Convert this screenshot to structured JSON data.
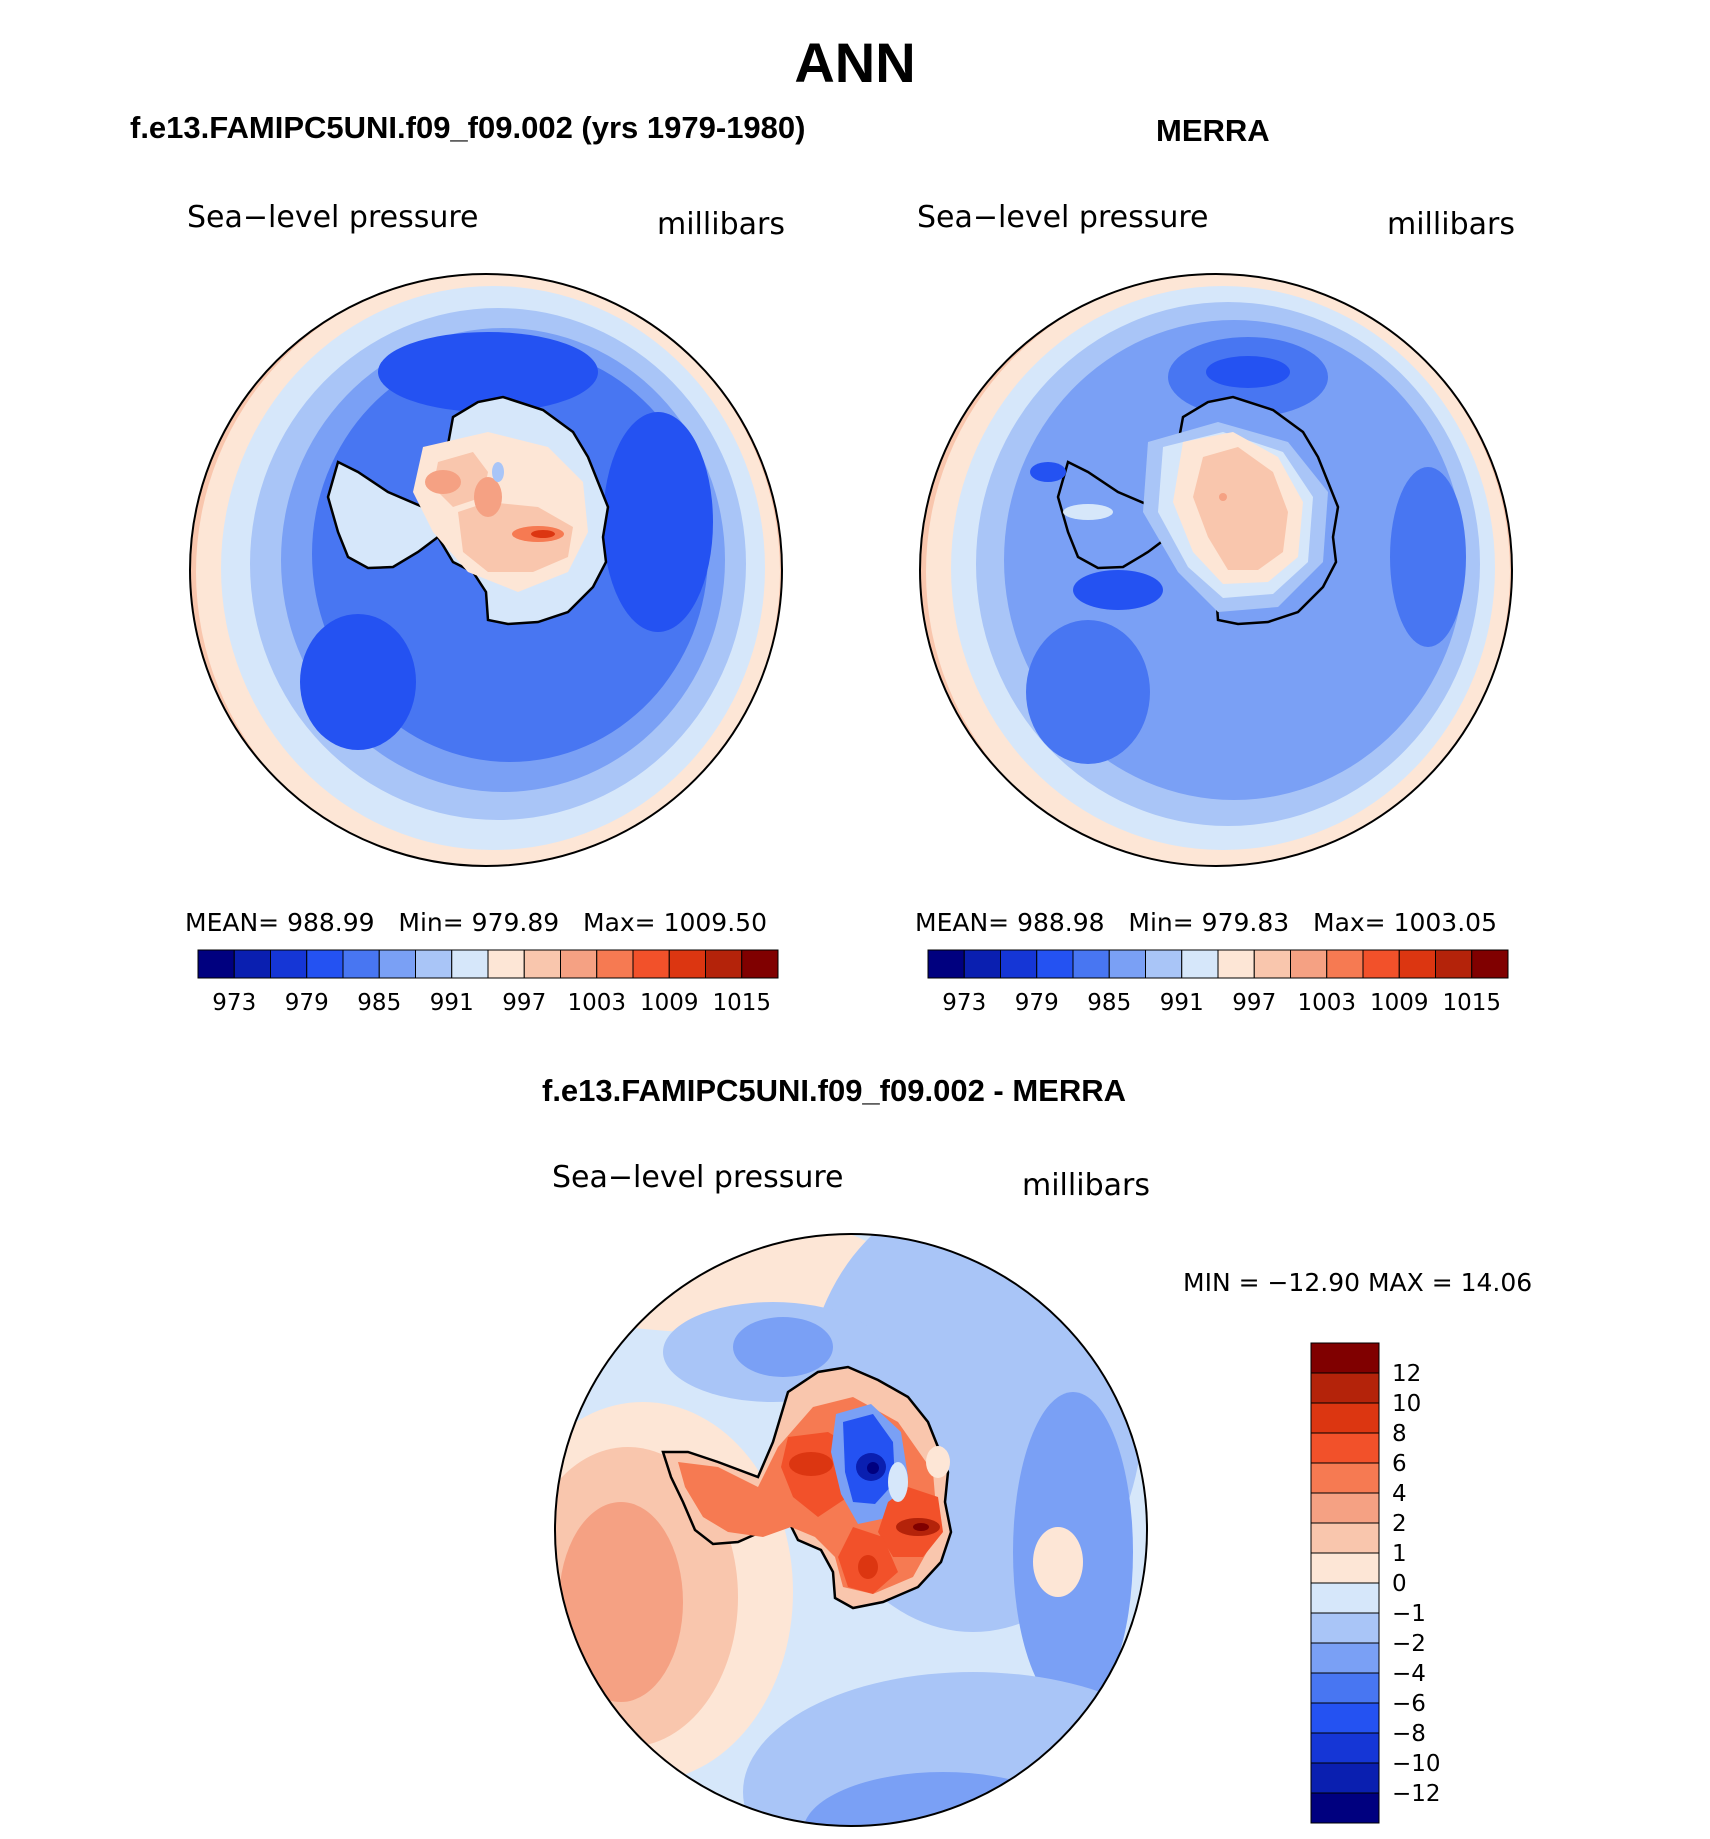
{
  "page": {
    "title": "ANN"
  },
  "panels": {
    "model": {
      "title": "f.e13.FAMIPC5UNI.f09_f09.002 (yrs 1979-1980)",
      "variable": "Sea−level pressure",
      "units": "millibars",
      "mean_label": "MEAN=",
      "mean": "988.99",
      "min_label": "Min=",
      "min": "979.89",
      "max_label": "Max=",
      "max": "1009.50"
    },
    "obs": {
      "title": "MERRA",
      "variable": "Sea−level pressure",
      "units": "millibars",
      "mean_label": "MEAN=",
      "mean": "988.98",
      "min_label": "Min=",
      "min": "979.83",
      "max_label": "Max=",
      "max": "1003.05"
    },
    "diff": {
      "title": "f.e13.FAMIPC5UNI.f09_f09.002 - MERRA",
      "variable": "Sea−level pressure",
      "units": "millibars",
      "minmax_text": "MIN = −12.90 MAX =   14.06"
    }
  },
  "chart_data": [
    {
      "type": "heatmap",
      "projection": "south-polar stereographic",
      "title": "f.e13.FAMIPC5UNI.f09_f09.002 (yrs 1979-1980)",
      "variable": "Sea-level pressure",
      "units": "millibars",
      "mean": 988.99,
      "min": 979.89,
      "max": 1009.5,
      "contour_levels": [
        970,
        973,
        976,
        979,
        982,
        985,
        988,
        991,
        994,
        997,
        1000,
        1003,
        1006,
        1009,
        1012,
        1015
      ],
      "colorbar_ticks": [
        "973",
        "979",
        "985",
        "991",
        "997",
        "1003",
        "1009",
        "1015"
      ],
      "colors": [
        "#00007f",
        "#0a1fb0",
        "#1536d6",
        "#2452f2",
        "#4876f2",
        "#7aa0f5",
        "#a9c5f7",
        "#d6e7fa",
        "#fde6d6",
        "#f9c6ad",
        "#f5a183",
        "#f67a52",
        "#f2512a",
        "#dc3611",
        "#b4230a",
        "#800000"
      ],
      "field_bands_outer_to_inner": [
        997,
        994,
        991,
        988,
        985,
        982,
        979
      ]
    },
    {
      "type": "heatmap",
      "projection": "south-polar stereographic",
      "title": "MERRA",
      "variable": "Sea-level pressure",
      "units": "millibars",
      "mean": 988.98,
      "min": 979.83,
      "max": 1003.05,
      "contour_levels": [
        970,
        973,
        976,
        979,
        982,
        985,
        988,
        991,
        994,
        997,
        1000,
        1003,
        1006,
        1009,
        1012,
        1015
      ],
      "colorbar_ticks": [
        "973",
        "979",
        "985",
        "991",
        "997",
        "1003",
        "1009",
        "1015"
      ],
      "colors": [
        "#00007f",
        "#0a1fb0",
        "#1536d6",
        "#2452f2",
        "#4876f2",
        "#7aa0f5",
        "#a9c5f7",
        "#d6e7fa",
        "#fde6d6",
        "#f9c6ad",
        "#f5a183",
        "#f67a52",
        "#f2512a",
        "#dc3611",
        "#b4230a",
        "#800000"
      ],
      "field_bands_outer_to_inner": [
        997,
        994,
        991,
        988,
        985,
        982,
        979
      ]
    },
    {
      "type": "heatmap",
      "projection": "south-polar stereographic",
      "title": "f.e13.FAMIPC5UNI.f09_f09.002 - MERRA",
      "variable": "Sea-level pressure",
      "units": "millibars",
      "min": -12.9,
      "max": 14.06,
      "contour_levels": [
        -12,
        -10,
        -8,
        -6,
        -4,
        -2,
        -1,
        0,
        1,
        2,
        4,
        6,
        8,
        10,
        12
      ],
      "colorbar_ticks": [
        "12",
        "10",
        "8",
        "6",
        "4",
        "2",
        "1",
        "0",
        "−1",
        "−2",
        "−4",
        "−6",
        "−8",
        "−10",
        "−12"
      ],
      "colors_top_to_bottom": [
        "#800000",
        "#b4230a",
        "#dc3611",
        "#f2512a",
        "#f67a52",
        "#f5a183",
        "#f9c6ad",
        "#fde6d6",
        "#d6e7fa",
        "#a9c5f7",
        "#7aa0f5",
        "#4876f2",
        "#2452f2",
        "#1536d6",
        "#0a1fb0",
        "#00007f"
      ]
    }
  ]
}
